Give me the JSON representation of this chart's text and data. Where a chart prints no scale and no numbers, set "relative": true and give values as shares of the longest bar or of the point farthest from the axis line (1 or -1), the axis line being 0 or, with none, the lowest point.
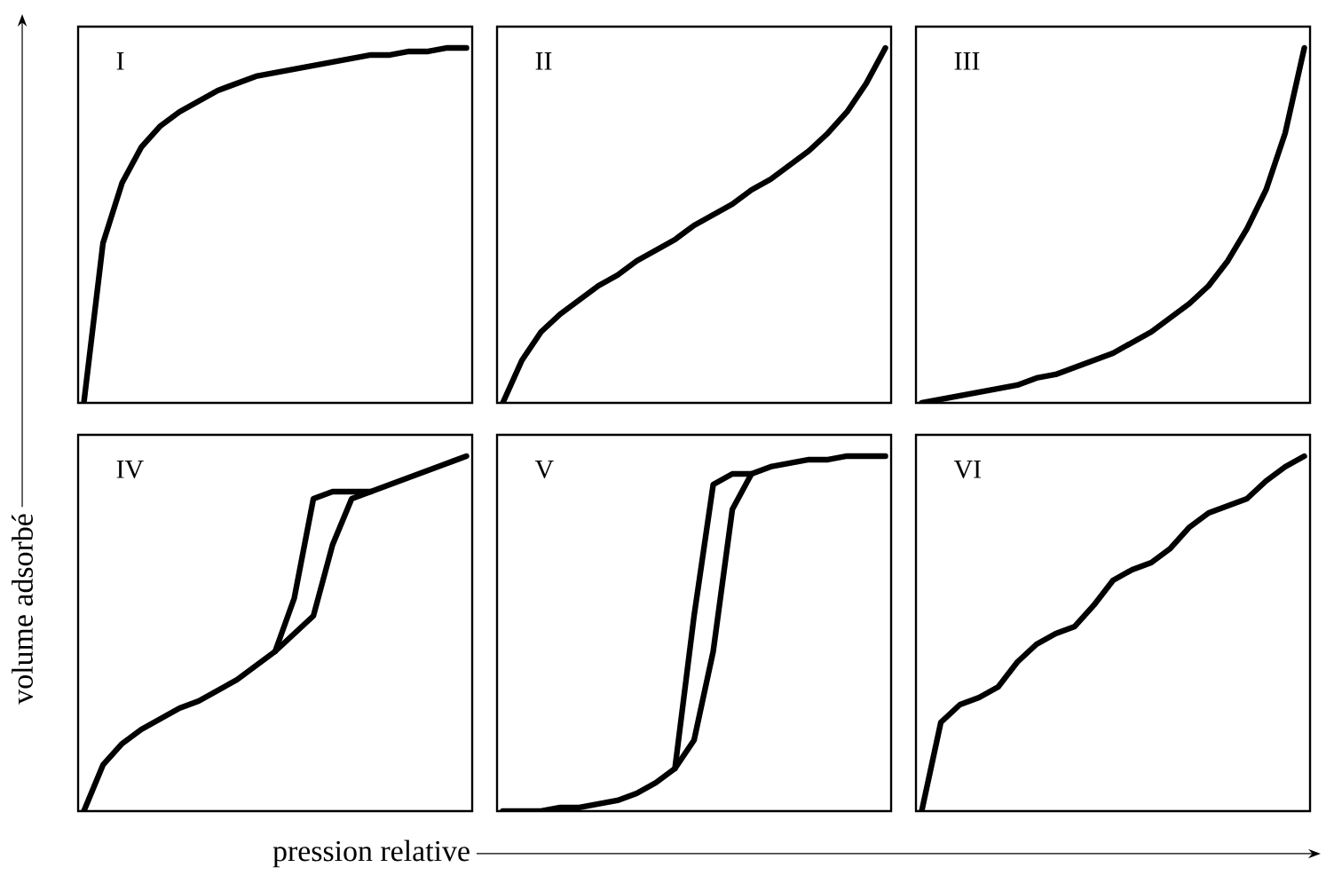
{
  "chart_data": [
    {
      "type": "line",
      "title": "I",
      "relative": true,
      "marker": "none",
      "line_style": "solid",
      "ylabel": "volume adsorbé",
      "categories": [
        null,
        null,
        null,
        null,
        null,
        null,
        null,
        null,
        null,
        null,
        null,
        null,
        null,
        null,
        null,
        null,
        null,
        null,
        null,
        null,
        null
      ],
      "series": [
        {
          "color": "#000000",
          "values": [
            0,
            0.45,
            0.62,
            0.72,
            0.78,
            0.82,
            0.85,
            0.88,
            0.9,
            0.92,
            0.93,
            0.94,
            0.95,
            0.96,
            0.97,
            0.98,
            0.98,
            0.99,
            0.99,
            1,
            1
          ]
        }
      ]
    },
    {
      "type": "line",
      "title": "II",
      "relative": true,
      "marker": "none",
      "line_style": "solid",
      "categories": [
        null,
        null,
        null,
        null,
        null,
        null,
        null,
        null,
        null,
        null,
        null,
        null,
        null,
        null,
        null,
        null,
        null,
        null,
        null,
        null,
        null
      ],
      "series": [
        {
          "color": "#000000",
          "values": [
            0,
            0.12,
            0.2,
            0.25,
            0.29,
            0.33,
            0.36,
            0.4,
            0.43,
            0.46,
            0.5,
            0.53,
            0.56,
            0.6,
            0.63,
            0.67,
            0.71,
            0.76,
            0.82,
            0.9,
            1
          ]
        }
      ]
    },
    {
      "type": "line",
      "title": "III",
      "relative": true,
      "marker": "none",
      "line_style": "solid",
      "categories": [
        null,
        null,
        null,
        null,
        null,
        null,
        null,
        null,
        null,
        null,
        null,
        null,
        null,
        null,
        null,
        null,
        null,
        null,
        null,
        null,
        null
      ],
      "series": [
        {
          "color": "#000000",
          "values": [
            0,
            0.01,
            0.02,
            0.03,
            0.04,
            0.05,
            0.07,
            0.08,
            0.1,
            0.12,
            0.14,
            0.17,
            0.2,
            0.24,
            0.28,
            0.33,
            0.4,
            0.49,
            0.6,
            0.76,
            1
          ]
        }
      ]
    },
    {
      "type": "line",
      "title": "IV",
      "relative": true,
      "marker": "none",
      "line_style": "solid",
      "xlabel": "pression relative",
      "categories": [
        null,
        null,
        null,
        null,
        null,
        null,
        null,
        null,
        null,
        null,
        null,
        null,
        null,
        null,
        null,
        null,
        null,
        null,
        null,
        null,
        null
      ],
      "series": [
        {
          "color": "#000000",
          "values": [
            0,
            0.13,
            0.19,
            0.23,
            0.26,
            0.29,
            0.31,
            0.34,
            0.37,
            0.41,
            0.45,
            0.5,
            0.55,
            0.75,
            0.88,
            0.9,
            0.92,
            0.94,
            0.96,
            0.98,
            1
          ]
        },
        {
          "color": "#000000",
          "values": [
            null,
            null,
            null,
            null,
            null,
            null,
            null,
            null,
            null,
            null,
            0.45,
            0.6,
            0.88,
            0.9,
            0.9,
            0.9,
            null,
            null,
            null,
            null,
            null
          ]
        }
      ]
    },
    {
      "type": "line",
      "title": "V",
      "relative": true,
      "marker": "none",
      "line_style": "solid",
      "categories": [
        null,
        null,
        null,
        null,
        null,
        null,
        null,
        null,
        null,
        null,
        null,
        null,
        null,
        null,
        null,
        null,
        null,
        null,
        null,
        null,
        null
      ],
      "series": [
        {
          "color": "#000000",
          "values": [
            0,
            0,
            0,
            0.01,
            0.01,
            0.02,
            0.03,
            0.05,
            0.08,
            0.12,
            0.2,
            0.45,
            0.85,
            0.95,
            0.97,
            0.98,
            0.99,
            0.99,
            1,
            1,
            1
          ]
        },
        {
          "color": "#000000",
          "values": [
            null,
            null,
            null,
            null,
            null,
            null,
            null,
            null,
            null,
            0.12,
            0.55,
            0.92,
            0.95,
            0.95,
            null,
            null,
            null,
            null,
            null,
            null,
            null
          ]
        }
      ]
    },
    {
      "type": "line",
      "title": "VI",
      "relative": true,
      "marker": "none",
      "line_style": "solid",
      "categories": [
        null,
        null,
        null,
        null,
        null,
        null,
        null,
        null,
        null,
        null,
        null,
        null,
        null,
        null,
        null,
        null,
        null,
        null,
        null,
        null,
        null
      ],
      "series": [
        {
          "color": "#000000",
          "values": [
            0,
            0.25,
            0.3,
            0.32,
            0.35,
            0.42,
            0.47,
            0.5,
            0.52,
            0.58,
            0.65,
            0.68,
            0.7,
            0.74,
            0.8,
            0.84,
            0.86,
            0.88,
            0.93,
            0.97,
            1
          ]
        }
      ]
    }
  ]
}
